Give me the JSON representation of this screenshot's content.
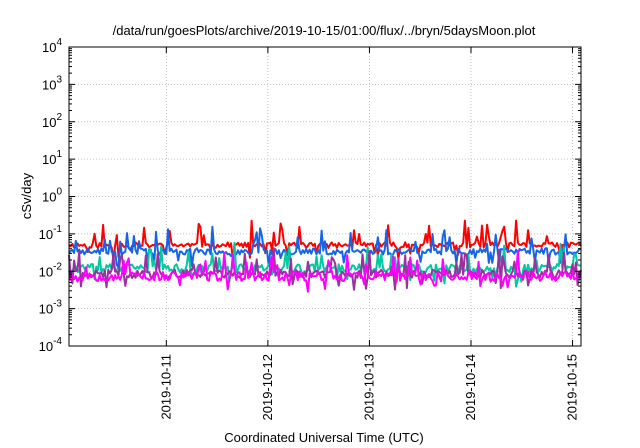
{
  "chart_data": {
    "type": "line",
    "title": "/data/run/goesPlots/archive/2019-10-15/01:00/flux/../bryn/5daysMoon.plot",
    "xlabel": "Coordinated Universal Time (UTC)",
    "ylabel": "cSv/day",
    "y_scale": "log",
    "ylim": [
      0.0001,
      10000
    ],
    "xlim": [
      "2019-10-10T01:00",
      "2019-10-15T02:00"
    ],
    "grid": true,
    "x_ticks": [
      "2019-10-11",
      "2019-10-12",
      "2019-10-13",
      "2019-10-14",
      "2019-10-15"
    ],
    "y_ticks": [
      {
        "base": "10",
        "exp": "-4"
      },
      {
        "base": "10",
        "exp": "-3"
      },
      {
        "base": "10",
        "exp": "-2"
      },
      {
        "base": "10",
        "exp": "-1"
      },
      {
        "base": "10",
        "exp": "0"
      },
      {
        "base": "10",
        "exp": "1"
      },
      {
        "base": "10",
        "exp": "2"
      },
      {
        "base": "10",
        "exp": "3"
      },
      {
        "base": "10",
        "exp": "4"
      }
    ],
    "series": [
      {
        "color": "#ff0000",
        "base": 0.05,
        "spread": 0.3,
        "seed": 11
      },
      {
        "color": "#1565e8",
        "base": 0.034,
        "spread": 0.35,
        "seed": 23
      },
      {
        "color": "#00c8a0",
        "base": 0.012,
        "spread": 0.45,
        "seed": 37
      },
      {
        "color": "#9b30a0",
        "base": 0.0085,
        "spread": 0.45,
        "seed": 41
      },
      {
        "color": "#ff00ff",
        "base": 0.0075,
        "spread": 0.55,
        "seed": 53
      }
    ]
  }
}
